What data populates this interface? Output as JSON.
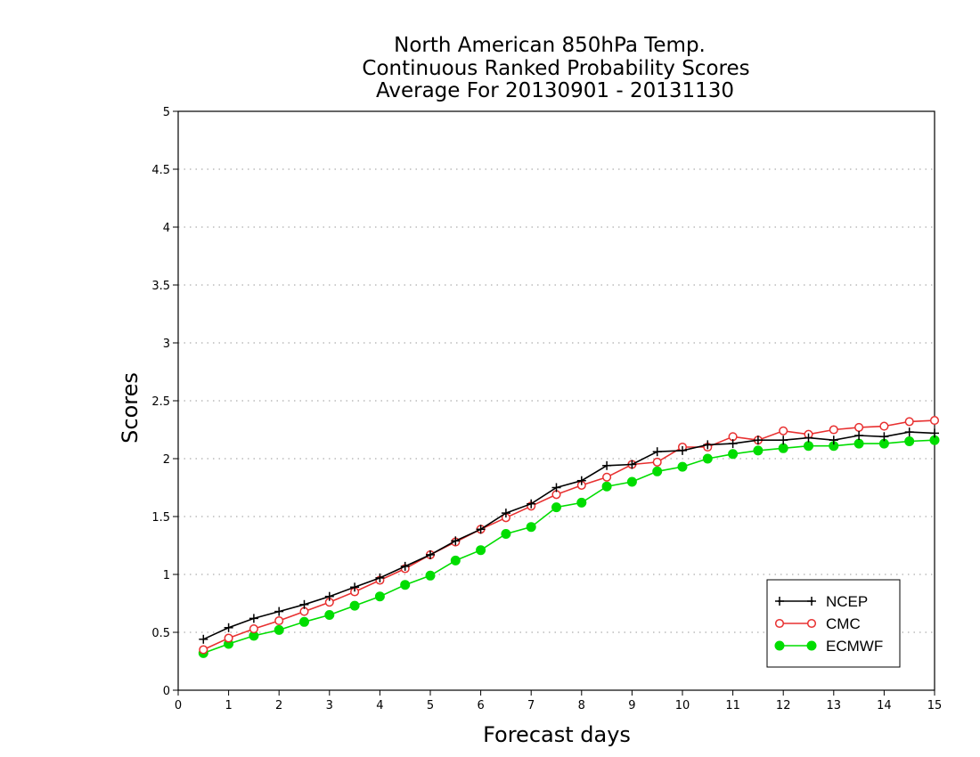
{
  "chart_data": {
    "type": "line",
    "title": [
      "North American 850hPa Temp.",
      "Continuous Ranked Probability Scores",
      "Average For 20130901 - 20131130"
    ],
    "xlabel": "Forecast days",
    "ylabel": "Scores",
    "xlim": [
      0,
      15
    ],
    "ylim": [
      0,
      5
    ],
    "x_ticks": [
      "0",
      "1",
      "2",
      "3",
      "4",
      "5",
      "6",
      "7",
      "8",
      "9",
      "10",
      "11",
      "12",
      "13",
      "14",
      "15"
    ],
    "y_ticks": [
      "0",
      "0.5",
      "1",
      "1.5",
      "2",
      "2.5",
      "3",
      "3.5",
      "4",
      "4.5",
      "5"
    ],
    "grid": "horizontal dotted",
    "legend_position": "bottom-right",
    "x": [
      0.5,
      1,
      1.5,
      2,
      2.5,
      3,
      3.5,
      4,
      4.5,
      5,
      5.5,
      6,
      6.5,
      7,
      7.5,
      8,
      8.5,
      9,
      9.5,
      10,
      10.5,
      11,
      11.5,
      12,
      12.5,
      13,
      13.5,
      14,
      14.5,
      15
    ],
    "series": [
      {
        "name": "NCEP",
        "color": "#000000",
        "marker": "plus",
        "values": [
          0.44,
          0.54,
          0.62,
          0.68,
          0.74,
          0.81,
          0.89,
          0.97,
          1.07,
          1.17,
          1.29,
          1.39,
          1.53,
          1.61,
          1.75,
          1.81,
          1.94,
          1.95,
          2.06,
          2.07,
          2.12,
          2.13,
          2.16,
          2.16,
          2.18,
          2.16,
          2.2,
          2.19,
          2.23,
          2.22
        ]
      },
      {
        "name": "CMC",
        "color": "#e83030",
        "marker": "open-circle",
        "values": [
          0.35,
          0.45,
          0.53,
          0.6,
          0.68,
          0.76,
          0.85,
          0.95,
          1.05,
          1.17,
          1.28,
          1.39,
          1.49,
          1.59,
          1.69,
          1.77,
          1.84,
          1.95,
          1.97,
          2.1,
          2.1,
          2.19,
          2.16,
          2.24,
          2.21,
          2.25,
          2.27,
          2.28,
          2.32,
          2.33
        ]
      },
      {
        "name": "ECMWF",
        "color": "#00dd00",
        "marker": "filled-circle",
        "values": [
          0.32,
          0.4,
          0.47,
          0.52,
          0.59,
          0.65,
          0.73,
          0.81,
          0.91,
          0.99,
          1.12,
          1.21,
          1.35,
          1.41,
          1.58,
          1.62,
          1.76,
          1.8,
          1.89,
          1.93,
          2.0,
          2.04,
          2.07,
          2.09,
          2.11,
          2.11,
          2.13,
          2.13,
          2.15,
          2.16
        ]
      }
    ]
  }
}
